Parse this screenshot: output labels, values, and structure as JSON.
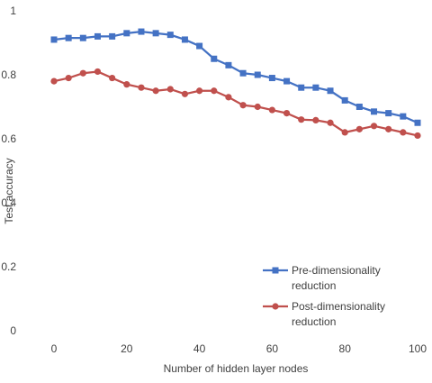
{
  "chart_data": {
    "type": "line",
    "title": "",
    "xlabel": "Number of hidden layer nodes",
    "ylabel": "Test accuracy",
    "xlim": [
      0,
      100
    ],
    "ylim": [
      0,
      1
    ],
    "x_ticks": [
      "0",
      "20",
      "40",
      "60",
      "80",
      "100"
    ],
    "y_ticks": [
      "0",
      "0.2",
      "0.4",
      "0.6",
      "0.8",
      "1"
    ],
    "grid": false,
    "legend_position": "bottom-right",
    "x": [
      0,
      4,
      8,
      12,
      16,
      20,
      24,
      28,
      32,
      36,
      40,
      44,
      48,
      52,
      56,
      60,
      64,
      68,
      72,
      76,
      80,
      84,
      88,
      92,
      96,
      100
    ],
    "series": [
      {
        "name": "Pre-dimensionality reduction",
        "legend_lines": [
          "Pre-dimensionality",
          "reduction"
        ],
        "color": "#4472C4",
        "marker": "square",
        "values": [
          0.91,
          0.915,
          0.915,
          0.92,
          0.92,
          0.93,
          0.935,
          0.93,
          0.925,
          0.91,
          0.89,
          0.85,
          0.83,
          0.805,
          0.8,
          0.79,
          0.78,
          0.76,
          0.76,
          0.75,
          0.72,
          0.7,
          0.685,
          0.68,
          0.67,
          0.65
        ]
      },
      {
        "name": "Post-dimensionality reduction",
        "legend_lines": [
          "Post-dimensionality",
          "reduction"
        ],
        "color": "#C0504D",
        "marker": "circle",
        "values": [
          0.78,
          0.79,
          0.805,
          0.81,
          0.79,
          0.77,
          0.76,
          0.75,
          0.755,
          0.74,
          0.75,
          0.75,
          0.73,
          0.705,
          0.7,
          0.69,
          0.68,
          0.66,
          0.658,
          0.65,
          0.62,
          0.63,
          0.64,
          0.63,
          0.62,
          0.61
        ]
      }
    ]
  }
}
